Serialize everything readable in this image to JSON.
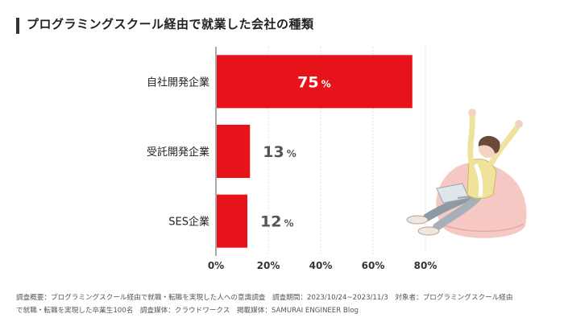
{
  "title": "プログラミングスクール経由で就業した会社の種類",
  "colors": {
    "bar": "#e6141a",
    "value_text_outside": "#555555",
    "value_text_inside": "#ffffff",
    "grid": "#cccccc"
  },
  "chart_data": {
    "type": "bar",
    "orientation": "horizontal",
    "title": "プログラミングスクール経由で就業した会社の種類",
    "categories": [
      "自社開発企業",
      "受託開発企業",
      "SES企業"
    ],
    "values": [
      75,
      13,
      12
    ],
    "value_labels": [
      {
        "num": "75",
        "unit": "%"
      },
      {
        "num": "13",
        "unit": "%"
      },
      {
        "num": "12",
        "unit": "%"
      }
    ],
    "xlim": [
      0,
      80
    ],
    "xticks": [
      "0%",
      "20%",
      "40%",
      "60%",
      "80%"
    ],
    "xtick_values": [
      0,
      20,
      40,
      60,
      80
    ],
    "grid": true,
    "legend": "none"
  },
  "footnote": {
    "line1": "調査概要：プログラミングスクール経由で就職・転職を実現した人への意識調査　調査期間：2023/10/24~2023/11/3　対象者：プログラミングスクール経由",
    "line2": "で就職・転職を実現した卒業生100名　調査媒体：クラウドワークス　掲載媒体：SAMURAI ENGINEER Blog"
  },
  "illustration": {
    "icon": "person-with-laptop-on-beanbag-illustration"
  }
}
